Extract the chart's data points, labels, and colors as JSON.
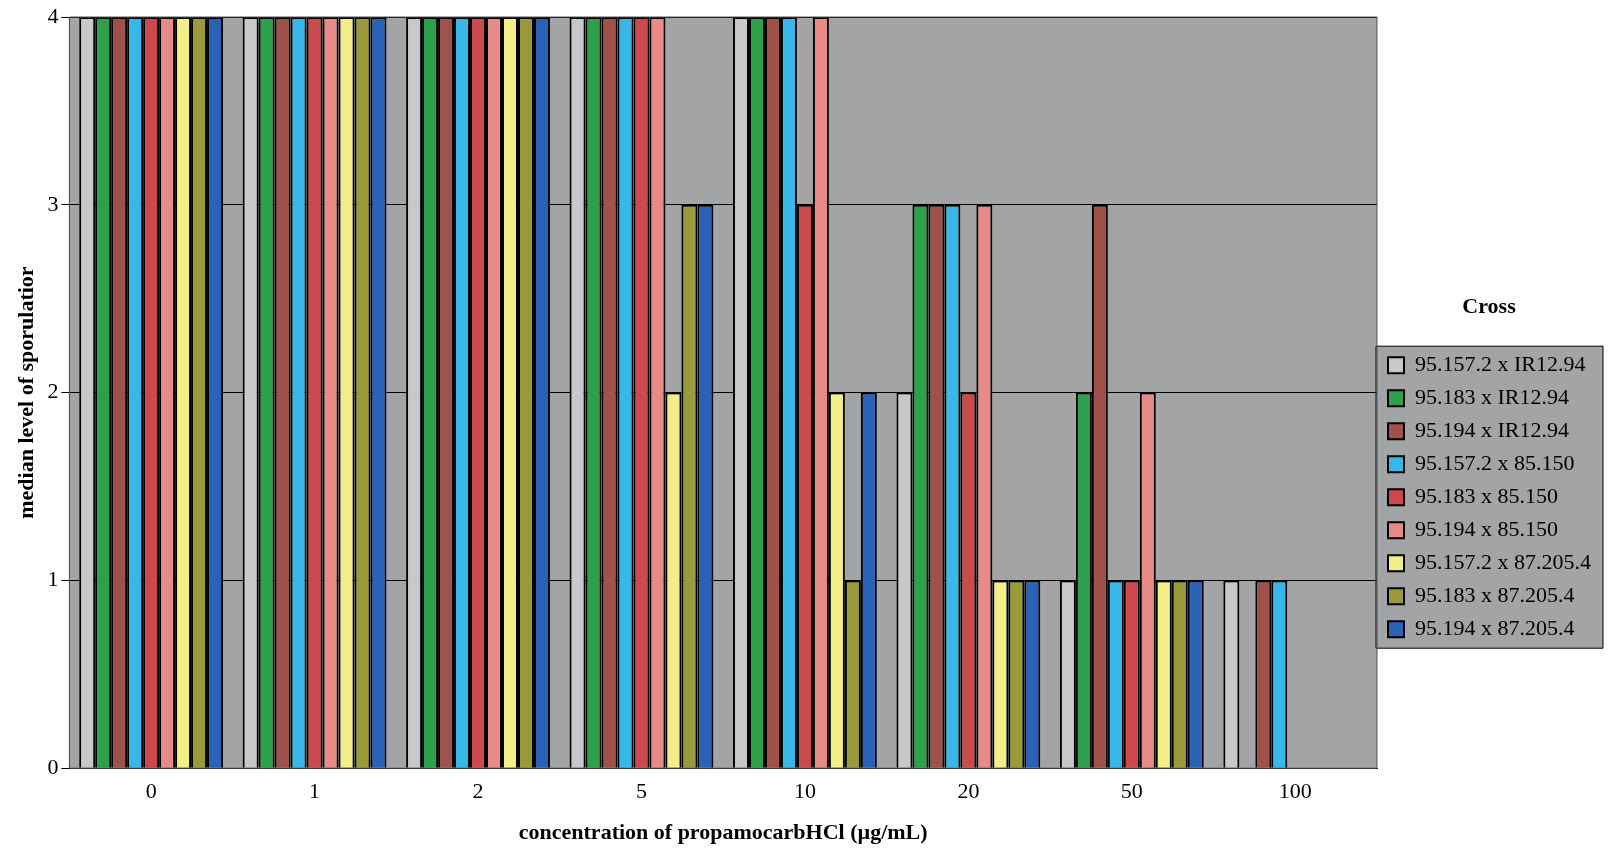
{
  "chart_data": {
    "type": "bar",
    "xlabel": "concentration of propamocarbHCl (µg/mL)",
    "ylabel": "median level of sporulatior",
    "legend_title": "Cross",
    "categories": [
      "0",
      "1",
      "2",
      "5",
      "10",
      "20",
      "50",
      "100"
    ],
    "series": [
      {
        "name": "95.157.2 x IR12.94",
        "color": "#c8c8c8",
        "values": [
          4,
          4,
          4,
          4,
          4,
          2,
          1,
          1
        ]
      },
      {
        "name": "95.183 x IR12.94",
        "color": "#2ca04a",
        "values": [
          4,
          4,
          4,
          4,
          4,
          3,
          2,
          null
        ]
      },
      {
        "name": "95.194 x IR12.94",
        "color": "#a0524a",
        "values": [
          4,
          4,
          4,
          4,
          4,
          3,
          3,
          1
        ]
      },
      {
        "name": "95.157.2 x 85.150",
        "color": "#38b8e8",
        "values": [
          4,
          4,
          4,
          4,
          4,
          3,
          1,
          1
        ]
      },
      {
        "name": "95.183 x 85.150",
        "color": "#cc4a4e",
        "values": [
          4,
          4,
          4,
          4,
          3,
          2,
          1,
          null
        ]
      },
      {
        "name": "95.194 x 85.150",
        "color": "#e88a88",
        "values": [
          4,
          4,
          4,
          4,
          4,
          3,
          2,
          null
        ]
      },
      {
        "name": "95.157.2 x 87.205.4",
        "color": "#f4ee88",
        "values": [
          4,
          4,
          4,
          2,
          2,
          1,
          1,
          null
        ]
      },
      {
        "name": "95.183 x 87.205.4",
        "color": "#9a9a3a",
        "values": [
          4,
          4,
          4,
          3,
          1,
          1,
          1,
          null
        ]
      },
      {
        "name": "95.194 x 87.205.4",
        "color": "#2a62b8",
        "values": [
          4,
          4,
          4,
          3,
          2,
          1,
          1,
          null
        ]
      }
    ],
    "ylim": [
      0,
      4
    ],
    "yticks": [
      0,
      1,
      2,
      3,
      4
    ],
    "grid": "y",
    "legend": "right"
  }
}
